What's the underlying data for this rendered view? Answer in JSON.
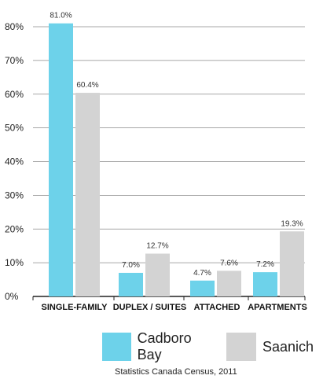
{
  "chart_data": {
    "type": "bar",
    "categories": [
      "SINGLE-FAMILY",
      "DUPLEX / SUITES",
      "ATTACHED",
      "APARTMENTS"
    ],
    "series": [
      {
        "name": "Cadboro Bay",
        "values": [
          81.0,
          7.0,
          4.7,
          7.2
        ],
        "labels": [
          "81.0%",
          "7.0%",
          "4.7%",
          "7.2%"
        ],
        "color": "#6dd2ea"
      },
      {
        "name": "Saanich",
        "values": [
          60.4,
          12.7,
          7.6,
          19.3
        ],
        "labels": [
          "60.4%",
          "12.7%",
          "7.6%",
          "19.3%"
        ],
        "color": "#d3d3d3"
      }
    ],
    "yticks": [
      "0%",
      "10%",
      "20%",
      "30%",
      "40%",
      "50%",
      "60%",
      "70%",
      "80%"
    ],
    "ylim": [
      0,
      80
    ],
    "grid": true,
    "legend": "bottom",
    "source": "Statistics Canada Census, 2011"
  }
}
